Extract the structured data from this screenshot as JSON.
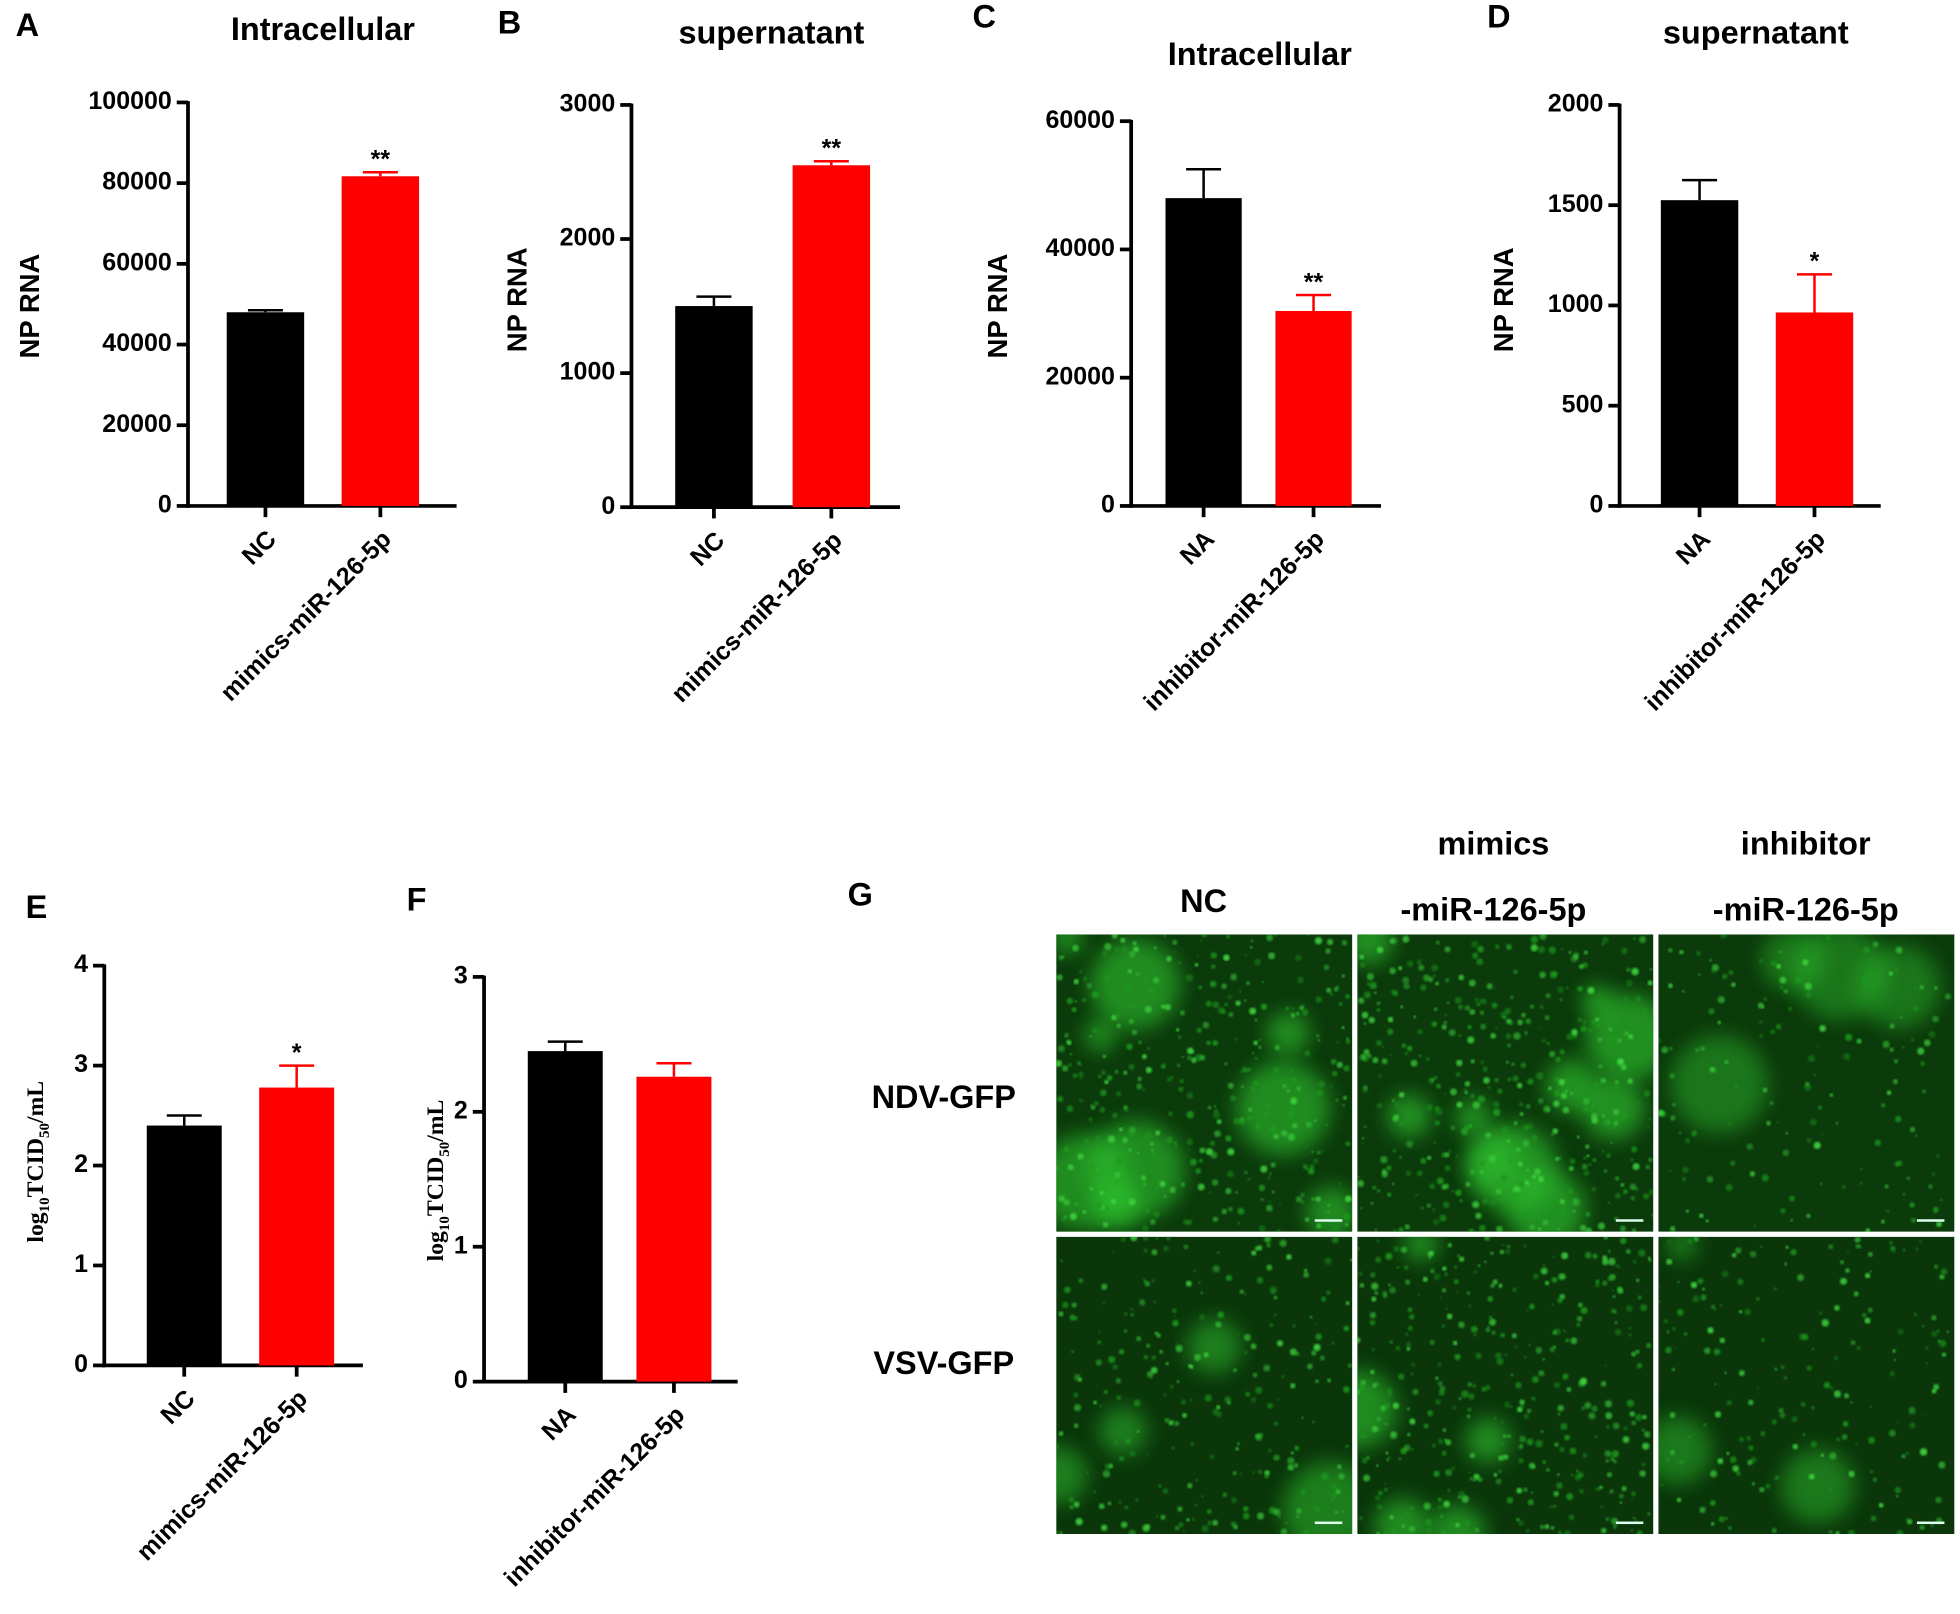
{
  "chart_data": [
    {
      "panel": "A",
      "type": "bar",
      "title": "Intracellular",
      "ylabel": "NP RNA",
      "categories": [
        "NC",
        "mimics-miR-126-5p"
      ],
      "values": [
        48000,
        81700
      ],
      "errors": [
        500,
        1000
      ],
      "annotations": [
        null,
        "**"
      ],
      "colors": [
        "#000000",
        "#ff0000"
      ],
      "ylim": [
        0,
        100000
      ],
      "yticks": [
        0,
        20000,
        40000,
        60000,
        80000,
        100000
      ]
    },
    {
      "panel": "B",
      "type": "bar",
      "title": "supernatant",
      "ylabel": "NP RNA",
      "categories": [
        "NC",
        "mimics-miR-126-5p"
      ],
      "values": [
        1500,
        2550
      ],
      "errors": [
        70,
        30
      ],
      "annotations": [
        null,
        "**"
      ],
      "colors": [
        "#000000",
        "#ff0000"
      ],
      "ylim": [
        0,
        3000
      ],
      "yticks": [
        0,
        1000,
        2000,
        3000
      ]
    },
    {
      "panel": "C",
      "type": "bar",
      "title": "Intracellular",
      "ylabel": "NP RNA",
      "categories": [
        "NA",
        "inhibitor-miR-126-5p"
      ],
      "values": [
        48000,
        30400
      ],
      "errors": [
        4500,
        2500
      ],
      "annotations": [
        null,
        "**"
      ],
      "colors": [
        "#000000",
        "#ff0000"
      ],
      "ylim": [
        0,
        60000
      ],
      "yticks": [
        0,
        20000,
        40000,
        60000
      ]
    },
    {
      "panel": "D",
      "type": "bar",
      "title": "supernatant",
      "ylabel": "NP RNA",
      "categories": [
        "NA",
        "inhibitor-miR-126-5p"
      ],
      "values": [
        1525,
        965
      ],
      "errors": [
        100,
        190
      ],
      "annotations": [
        null,
        "*"
      ],
      "colors": [
        "#000000",
        "#ff0000"
      ],
      "ylim": [
        0,
        2000
      ],
      "yticks": [
        0,
        500,
        1000,
        1500,
        2000
      ]
    },
    {
      "panel": "E",
      "type": "bar",
      "ylabel": [
        "log",
        "10",
        "TCID",
        "50",
        "/mL"
      ],
      "categories": [
        "NC",
        "mimics-miR-126-5p"
      ],
      "values": [
        2.4,
        2.78
      ],
      "errors": [
        0.1,
        0.22
      ],
      "annotations": [
        null,
        "*"
      ],
      "colors": [
        "#000000",
        "#ff0000"
      ],
      "ylim": [
        0,
        4
      ],
      "yticks": [
        0,
        1,
        2,
        3,
        4
      ]
    },
    {
      "panel": "F",
      "type": "bar",
      "ylabel": [
        "log",
        "10",
        "TCID",
        "50",
        "/mL"
      ],
      "categories": [
        "NA",
        "inhibitor-miR-126-5p"
      ],
      "values": [
        2.45,
        2.26
      ],
      "errors": [
        0.07,
        0.1
      ],
      "annotations": [
        null,
        null
      ],
      "colors": [
        "#000000",
        "#ff0000"
      ],
      "ylim": [
        0,
        3
      ],
      "yticks": [
        0,
        1,
        2,
        3
      ]
    }
  ],
  "image_panel": {
    "panel": "G",
    "columns": [
      [
        "NC"
      ],
      [
        "mimics",
        "-miR-126-5p"
      ],
      [
        "inhibitor",
        "-miR-126-5p"
      ]
    ],
    "rows": [
      "NDV-GFP",
      "VSV-GFP"
    ]
  }
}
